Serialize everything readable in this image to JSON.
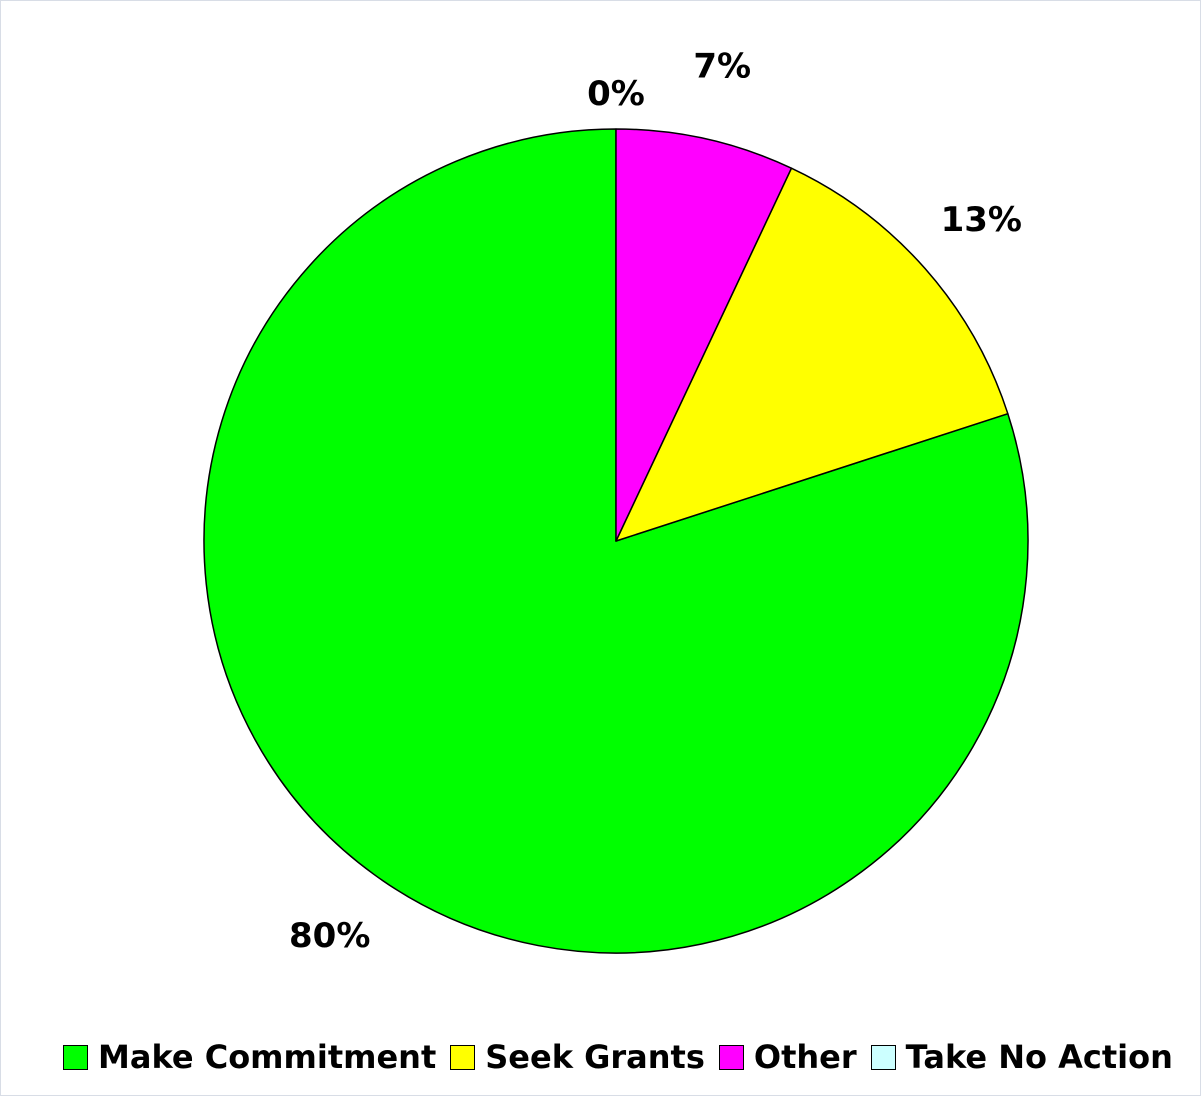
{
  "chart_data": {
    "type": "pie",
    "title": "",
    "slices": [
      {
        "name": "Make Commitment",
        "value": 80,
        "label": "80%",
        "color": "#00ff00"
      },
      {
        "name": "Seek Grants",
        "value": 13,
        "label": "13%",
        "color": "#ffff00"
      },
      {
        "name": "Other",
        "value": 7,
        "label": "7%",
        "color": "#ff00ff"
      },
      {
        "name": "Take No Action",
        "value": 0,
        "label": "0%",
        "color": "#ccffff"
      }
    ],
    "legend_position": "bottom"
  }
}
